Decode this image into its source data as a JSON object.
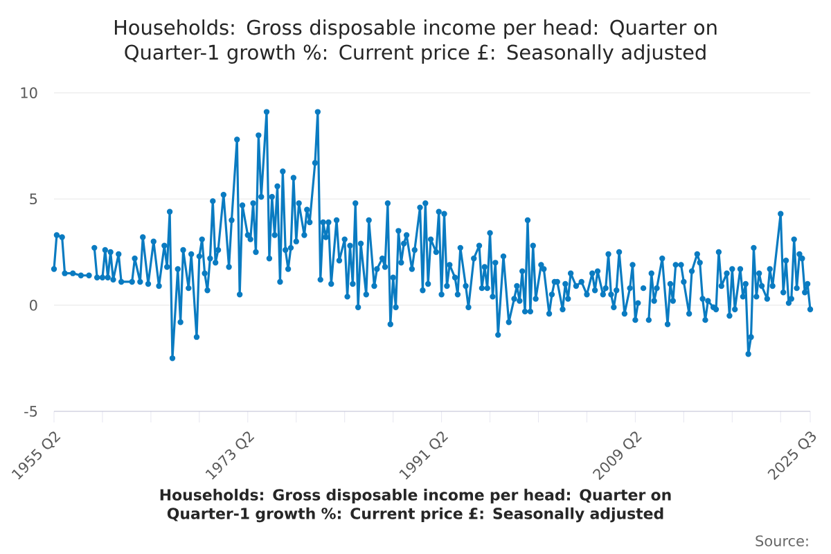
{
  "chart_data": {
    "type": "line",
    "title": "Households: Gross disposable income per head: Quarter on Quarter-1 growth %: Current price £: Seasonally adjusted",
    "xlabel": "Households: Gross disposable income per head: Quarter on Quarter-1 growth %: Current price £: Seasonally adjusted",
    "annotations": [
      "Source:"
    ],
    "x": [
      "1955-04",
      "1955-07",
      "1956-01",
      "1956-04",
      "1957-01",
      "1957-10",
      "1958-07",
      "1958-10",
      "1959-01",
      "1959-04",
      "1959-10",
      "1960-01",
      "1960-04",
      "1960-07",
      "1960-10",
      "1961-04",
      "1961-07",
      "1962-07",
      "1962-10",
      "1963-04",
      "1963-07",
      "1964-01",
      "1964-07",
      "1965-01",
      "1965-07",
      "1965-10",
      "1966-01",
      "1966-04",
      "1966-10",
      "1967-01",
      "1967-04",
      "1967-10",
      "1968-01",
      "1968-07",
      "1968-10",
      "1969-01",
      "1969-04",
      "1969-07",
      "1969-10",
      "1970-01",
      "1970-04",
      "1970-07",
      "1971-01",
      "1971-07",
      "1971-10",
      "1972-04",
      "1972-07",
      "1972-10",
      "1973-04",
      "1973-07",
      "1973-10",
      "1974-01",
      "1974-04",
      "1974-07",
      "1975-01",
      "1975-04",
      "1975-07",
      "1975-10",
      "1976-01",
      "1976-04",
      "1976-07",
      "1976-10",
      "1977-01",
      "1977-04",
      "1977-07",
      "1977-10",
      "1978-01",
      "1978-07",
      "1978-10",
      "1979-01",
      "1979-07",
      "1979-10",
      "1980-01",
      "1980-04",
      "1980-07",
      "1980-10",
      "1981-01",
      "1981-07",
      "1981-10",
      "1982-04",
      "1982-07",
      "1982-10",
      "1983-01",
      "1983-04",
      "1983-07",
      "1983-10",
      "1984-04",
      "1984-07",
      "1985-01",
      "1985-04",
      "1985-10",
      "1986-01",
      "1986-04",
      "1986-07",
      "1986-10",
      "1987-01",
      "1987-04",
      "1987-07",
      "1987-10",
      "1988-01",
      "1988-07",
      "1988-10",
      "1989-04",
      "1989-07",
      "1989-10",
      "1990-01",
      "1990-04",
      "1990-10",
      "1991-01",
      "1991-04",
      "1991-07",
      "1991-10",
      "1992-01",
      "1992-07",
      "1992-10",
      "1993-01",
      "1993-07",
      "1993-10",
      "1994-04",
      "1994-10",
      "1995-01",
      "1995-04",
      "1995-07",
      "1995-10",
      "1996-01",
      "1996-04",
      "1996-07",
      "1997-01",
      "1997-07",
      "1998-01",
      "1998-04",
      "1998-07",
      "1998-10",
      "1999-01",
      "1999-04",
      "1999-07",
      "1999-10",
      "2000-01",
      "2000-07",
      "2000-10",
      "2001-04",
      "2001-07",
      "2001-10",
      "2002-01",
      "2002-07",
      "2002-10",
      "2003-01",
      "2003-04",
      "2003-10",
      "2004-04",
      "2004-10",
      "2005-04",
      "2005-07",
      "2005-10",
      "2006-04",
      "2006-07",
      "2006-10",
      "2007-01",
      "2007-04",
      "2007-07",
      "2007-10",
      "2008-04",
      "2008-10",
      "2009-01",
      "2009-04",
      "2009-07",
      "2009-10",
      "2010-01",
      "2010-04",
      "2010-07",
      "2010-10",
      "2011-01",
      "2011-04",
      "2011-10",
      "2012-04",
      "2012-07",
      "2012-10",
      "2013-01",
      "2013-07",
      "2013-10",
      "2014-04",
      "2014-07",
      "2015-01",
      "2015-04",
      "2015-07",
      "2015-10",
      "2016-01",
      "2016-07",
      "2016-10",
      "2017-01",
      "2017-04",
      "2017-10",
      "2018-01",
      "2018-04",
      "2018-07",
      "2019-01",
      "2019-04",
      "2019-07",
      "2019-10",
      "2020-01",
      "2020-04",
      "2020-07",
      "2020-10",
      "2021-01",
      "2021-07",
      "2021-10",
      "2022-01",
      "2022-10",
      "2023-01",
      "2023-04",
      "2023-07",
      "2023-10",
      "2024-01",
      "2024-04",
      "2024-07",
      "2024-10",
      "2025-01",
      "2025-04",
      "2025-07"
    ],
    "values": [
      1.7,
      3.3,
      3.2,
      1.5,
      1.5,
      1.4,
      1.4,
      null,
      2.7,
      1.3,
      1.3,
      2.6,
      1.3,
      2.5,
      1.2,
      2.4,
      1.1,
      1.1,
      2.2,
      1.1,
      3.2,
      1.0,
      3.0,
      0.9,
      2.8,
      1.8,
      4.4,
      -2.5,
      1.7,
      -0.8,
      2.6,
      0.8,
      2.4,
      -1.5,
      2.3,
      3.1,
      1.5,
      0.7,
      2.2,
      4.9,
      2.0,
      2.6,
      5.2,
      1.8,
      4.0,
      7.8,
      0.5,
      4.7,
      3.3,
      3.1,
      4.8,
      2.5,
      8.0,
      5.1,
      9.1,
      2.2,
      5.1,
      3.3,
      5.6,
      1.1,
      6.3,
      2.6,
      1.7,
      2.7,
      6.0,
      3.0,
      4.8,
      3.3,
      4.5,
      3.9,
      6.7,
      9.1,
      1.2,
      3.9,
      3.2,
      3.9,
      1.0,
      4.0,
      2.1,
      3.1,
      0.4,
      2.8,
      1.0,
      4.8,
      -0.1,
      2.9,
      0.5,
      4.0,
      0.9,
      1.7,
      2.2,
      1.8,
      4.8,
      -0.9,
      1.3,
      -0.1,
      3.5,
      2.0,
      2.9,
      3.3,
      1.7,
      2.6,
      4.6,
      0.7,
      4.8,
      1.0,
      3.1,
      2.5,
      4.4,
      0.5,
      4.3,
      0.9,
      1.9,
      1.3,
      0.5,
      2.7,
      0.9,
      -0.1,
      2.2,
      2.8,
      0.8,
      1.8,
      0.8,
      3.4,
      0.4,
      2.0,
      -1.4,
      2.3,
      -0.8,
      0.3,
      0.9,
      0.2,
      1.6,
      -0.3,
      4.0,
      -0.3,
      2.8,
      0.3,
      1.9,
      1.7,
      -0.4,
      0.5,
      1.1,
      1.1,
      -0.2,
      1.0,
      0.3,
      1.5,
      0.9,
      1.1,
      0.5,
      1.5,
      0.7,
      1.6,
      0.5,
      0.8,
      2.4,
      0.5,
      -0.1,
      0.7,
      2.5,
      -0.4,
      0.8,
      1.9,
      -0.7,
      0.1,
      null,
      0.8,
      null,
      -0.7,
      1.5,
      0.2,
      0.8,
      2.2,
      -0.9,
      1.0,
      0.2,
      1.9,
      1.9,
      1.1,
      -0.4,
      1.6,
      2.4,
      2.0,
      0.3,
      -0.7,
      0.2,
      -0.1,
      -0.2,
      2.5,
      0.9,
      1.5,
      -0.5,
      1.7,
      -0.2,
      1.7,
      0.4,
      1.0,
      -2.3,
      -1.5,
      2.7,
      0.4,
      1.5,
      0.9,
      0.3,
      1.7,
      0.9,
      4.3,
      0.6,
      2.1,
      0.1,
      0.3,
      3.1,
      0.8,
      2.4,
      2.2,
      0.6,
      1.0,
      -0.2
    ],
    "color": "#0a7bc1",
    "xlim": [
      "1955-04",
      "2025-07"
    ],
    "xticks": [
      {
        "value": "1955-04",
        "label": "1955 Q2"
      },
      {
        "value": "1959-10",
        "label": null
      },
      {
        "value": "1964-04",
        "label": null
      },
      {
        "value": "1968-10",
        "label": null
      },
      {
        "value": "1973-04",
        "label": "1973 Q2"
      },
      {
        "value": "1977-10",
        "label": null
      },
      {
        "value": "1982-04",
        "label": null
      },
      {
        "value": "1986-10",
        "label": null
      },
      {
        "value": "1991-04",
        "label": "1991 Q2"
      },
      {
        "value": "1995-10",
        "label": null
      },
      {
        "value": "2000-04",
        "label": null
      },
      {
        "value": "2004-10",
        "label": null
      },
      {
        "value": "2009-04",
        "label": "2009 Q2"
      },
      {
        "value": "2013-10",
        "label": null
      },
      {
        "value": "2018-04",
        "label": null
      },
      {
        "value": "2022-10",
        "label": null
      },
      {
        "value": "2025-07",
        "label": "2025 Q3"
      }
    ],
    "ylim": [
      -5,
      10
    ],
    "yticks": [
      -5,
      0,
      5,
      10
    ],
    "grid": "y",
    "marker": "circle",
    "line_style": "solid"
  }
}
